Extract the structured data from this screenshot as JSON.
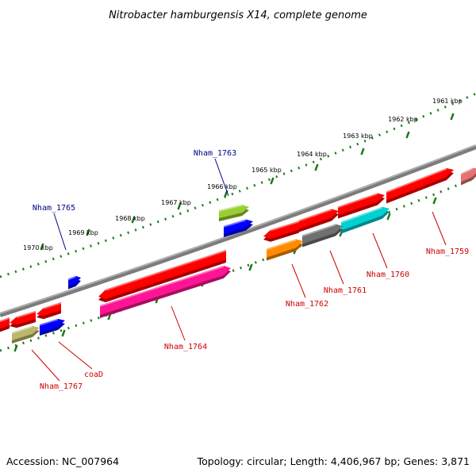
{
  "title": "Nitrobacter hamburgensis X14, complete genome",
  "footer": {
    "accession": "Accession: NC_007964",
    "topology": "Topology: circular; Length: 4,406,967 bp; Genes: 3,871"
  },
  "colors": {
    "backbone": "#808080",
    "ticks": "#1a7a1a",
    "forward_label": "#00008b",
    "reverse_label": "#cc0000"
  },
  "ticks_kbp": [
    "1961 kbp",
    "1962 kbp",
    "1963 kbp",
    "1964 kbp",
    "1965 kbp",
    "1966 kbp",
    "1967 kbp",
    "1968 kbp",
    "1969 kbp",
    "1970 kbp"
  ],
  "genes": [
    {
      "id": "nham-1759",
      "label": "Nham_1759",
      "strand": "reverse",
      "color": "#ff0000"
    },
    {
      "id": "nham-1760",
      "label": "Nham_1760",
      "strand": "reverse",
      "color": "#00d0d0"
    },
    {
      "id": "nham-1761",
      "label": "Nham_1761",
      "strand": "reverse",
      "color": "#707070"
    },
    {
      "id": "nham-1762",
      "label": "Nham_1762",
      "strand": "reverse",
      "color": "#ff8c00"
    },
    {
      "id": "nham-1763",
      "label": "Nham_1763",
      "strand": "forward",
      "color": "#9acd32"
    },
    {
      "id": "nham-1764",
      "label": "Nham_1764",
      "strand": "reverse",
      "color": "#ff1493"
    },
    {
      "id": "nham-1765",
      "label": "Nham_1765",
      "strand": "forward",
      "color": "#0000ff"
    },
    {
      "id": "coad",
      "label": "coaD",
      "strand": "reverse",
      "color": "#0000ff"
    },
    {
      "id": "nham-1767",
      "label": "Nham_1767",
      "strand": "reverse",
      "color": "#bdb76b"
    }
  ]
}
